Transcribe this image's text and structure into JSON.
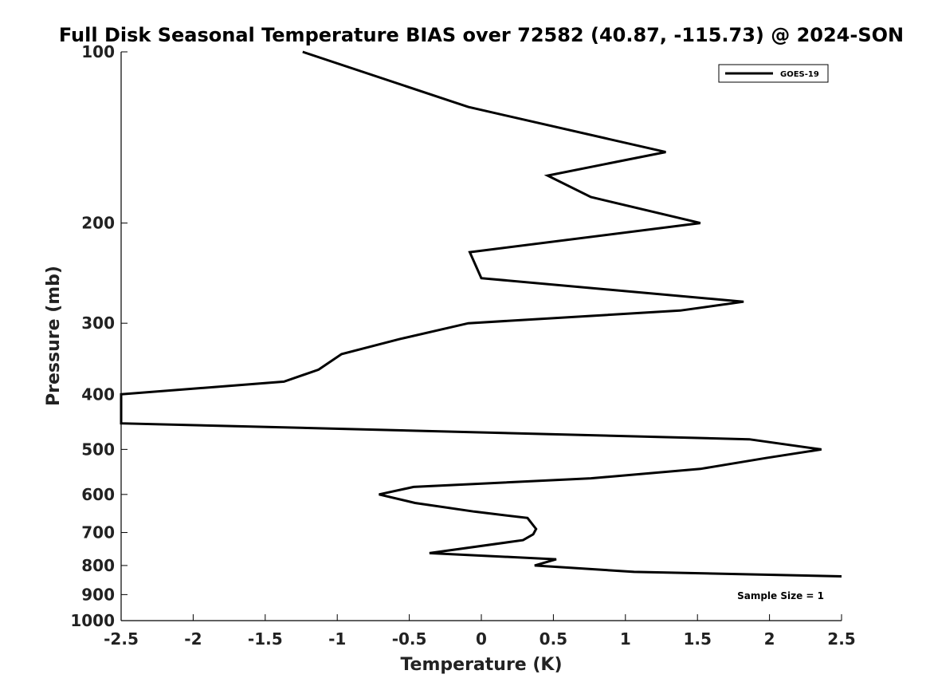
{
  "chart_data": {
    "type": "line",
    "title": "Full Disk Seasonal Temperature BIAS over 72582 (40.87, -115.73) @ 2024-SON",
    "xlabel": "Temperature (K)",
    "ylabel": "Pressure (mb)",
    "xlim": [
      -2.5,
      2.5
    ],
    "ylim": [
      100,
      1000
    ],
    "y_scale": "log",
    "y_reversed": true,
    "x_ticks": [
      -2.5,
      -2,
      -1.5,
      -1,
      -0.5,
      0,
      0.5,
      1,
      1.5,
      2,
      2.5
    ],
    "x_tick_labels": [
      "-2.5",
      "-2",
      "-1.5",
      "-1",
      "-0.5",
      "0",
      "0.5",
      "1",
      "1.5",
      "2",
      "2.5"
    ],
    "y_ticks": [
      100,
      200,
      300,
      400,
      500,
      600,
      700,
      800,
      900,
      1000
    ],
    "y_tick_labels": [
      "100",
      "200",
      "300",
      "400",
      "500",
      "600",
      "700",
      "800",
      "900",
      "1000"
    ],
    "grid": false,
    "legend": {
      "position": "top-right",
      "entries": [
        "GOES-19"
      ]
    },
    "annotation": "Sample Size = 1",
    "series": [
      {
        "name": "GOES-19",
        "color": "#000000",
        "x": [
          -1.24,
          -0.09,
          1.28,
          0.46,
          0.76,
          1.52,
          -0.08,
          0.0,
          1.82,
          1.38,
          -0.09,
          -0.57,
          -0.97,
          -1.13,
          -1.37,
          -2.5,
          -2.5,
          -0.99,
          1.86,
          2.36,
          1.97,
          1.52,
          0.76,
          -0.47,
          -0.71,
          -0.46,
          -0.05,
          0.32,
          0.38,
          0.36,
          0.29,
          -0.36,
          0.52,
          0.37,
          1.06,
          2.5
        ],
        "y": [
          100,
          125,
          150,
          165,
          180,
          200,
          225,
          250,
          275,
          285,
          300,
          320,
          340,
          362,
          380,
          400,
          450,
          460,
          480,
          500,
          518,
          541,
          562,
          582,
          600,
          621,
          643,
          660,
          690,
          705,
          722,
          761,
          780,
          800,
          821,
          836
        ]
      }
    ]
  }
}
